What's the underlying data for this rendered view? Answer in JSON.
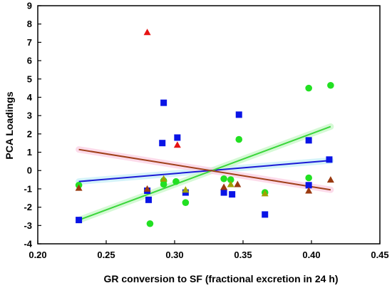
{
  "chart_data": {
    "type": "scatter",
    "xlabel": "GR conversion to SF (fractional excretion in 24 h)",
    "ylabel": "PCA Loadings",
    "xlim": [
      0.2,
      0.45
    ],
    "ylim": [
      -4,
      9
    ],
    "xticks": [
      "0.20",
      "0.25",
      "0.30",
      "0.35",
      "0.40",
      "0.45"
    ],
    "yticks": [
      "-4",
      "-3",
      "-2",
      "-1",
      "0",
      "1",
      "2",
      "3",
      "4",
      "5",
      "6",
      "7",
      "8",
      "9"
    ],
    "grid": false,
    "legend": "none",
    "series": [
      {
        "marker": "square",
        "color": "#0a14e6",
        "points": [
          [
            0.23,
            -2.7
          ],
          [
            0.28,
            -1.1
          ],
          [
            0.281,
            -1.6
          ],
          [
            0.291,
            1.5
          ],
          [
            0.292,
            3.7
          ],
          [
            0.302,
            1.8
          ],
          [
            0.308,
            -1.2
          ],
          [
            0.336,
            -1.2
          ],
          [
            0.342,
            -1.3
          ],
          [
            0.347,
            3.05
          ],
          [
            0.366,
            -2.4
          ],
          [
            0.398,
            1.65
          ],
          [
            0.398,
            -0.8
          ],
          [
            0.413,
            0.6
          ]
        ]
      },
      {
        "marker": "circle",
        "color": "#22e022",
        "points": [
          [
            0.23,
            -0.8
          ],
          [
            0.282,
            -2.9
          ],
          [
            0.292,
            -0.55
          ],
          [
            0.292,
            -0.75
          ],
          [
            0.301,
            -0.6
          ],
          [
            0.308,
            -1.75
          ],
          [
            0.336,
            -0.45
          ],
          [
            0.341,
            -0.5
          ],
          [
            0.347,
            1.7
          ],
          [
            0.366,
            -1.2
          ],
          [
            0.398,
            4.5
          ],
          [
            0.398,
            -0.4
          ],
          [
            0.414,
            4.65
          ]
        ]
      },
      {
        "marker": "triangle",
        "color": "#a0a000",
        "points": [
          [
            0.292,
            -0.45
          ],
          [
            0.308,
            -1.05
          ],
          [
            0.341,
            -0.75
          ],
          [
            0.366,
            -1.25
          ]
        ]
      },
      {
        "marker": "triangle",
        "color": "#e61414",
        "points": [
          [
            0.28,
            7.55
          ],
          [
            0.302,
            1.4
          ]
        ]
      },
      {
        "marker": "triangle",
        "color": "#9a3a10",
        "points": [
          [
            0.23,
            -0.95
          ],
          [
            0.28,
            -1.0
          ],
          [
            0.336,
            -0.9
          ],
          [
            0.346,
            -0.75
          ],
          [
            0.398,
            -1.1
          ],
          [
            0.414,
            -0.5
          ]
        ]
      }
    ],
    "trend_lines": [
      {
        "color": "#1a1ad6",
        "x": [
          0.23,
          0.414
        ],
        "y": [
          -0.6,
          0.55
        ]
      },
      {
        "color": "#3ad63a",
        "x": [
          0.23,
          0.414
        ],
        "y": [
          -2.7,
          2.4
        ]
      },
      {
        "color": "#a0401a",
        "x": [
          0.23,
          0.414
        ],
        "y": [
          1.15,
          -1.05
        ]
      }
    ]
  }
}
